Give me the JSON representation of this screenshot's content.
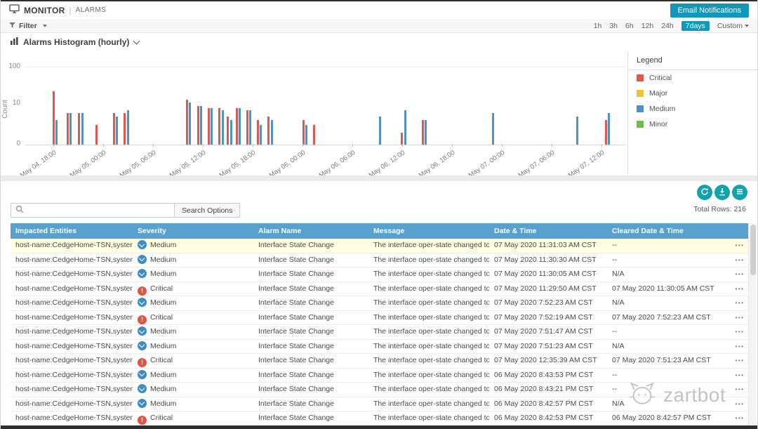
{
  "colors": {
    "accent": "#1297b8",
    "icon_teal": "#0fa3ad",
    "table_header_blue": "#58a1cf",
    "row_highlight": "#ffffe1",
    "severity": {
      "Critical": "#e8503f",
      "Medium": "#3d8cc4"
    }
  },
  "header": {
    "title_primary": "MONITOR",
    "title_separator": "|",
    "title_secondary": "ALARMS",
    "email_notifications_label": "Email Notifications"
  },
  "filter_bar": {
    "filter_label": "Filter",
    "time_ranges": [
      "1h",
      "3h",
      "6h",
      "12h",
      "24h"
    ],
    "selected_range": "7days",
    "custom_label": "Custom"
  },
  "histogram": {
    "title": "Alarms Histogram (hourly)",
    "legend_title": "Legend",
    "legend_items": [
      {
        "label": "Critical",
        "color": "#e2574c"
      },
      {
        "label": "Major",
        "color": "#f0c23a"
      },
      {
        "label": "Medium",
        "color": "#4f93c6"
      },
      {
        "label": "Minor",
        "color": "#6cc04a"
      }
    ],
    "ylabel": "Count",
    "yticks": [
      0,
      10,
      100
    ],
    "xticks": [
      "May 04, 18:00",
      "May 05, 00:00",
      "May 05, 06:00",
      "May 05, 12:00",
      "May 05, 18:00",
      "May 06, 00:00",
      "May 06, 06:00",
      "May 06, 12:00",
      "May 06, 18:00",
      "May 07, 00:00",
      "May 07, 06:00",
      "May 07, 12:00"
    ]
  },
  "chart_data": {
    "type": "bar",
    "title": "Alarms Histogram (hourly)",
    "ylabel": "Count",
    "yscale": "log",
    "ylim": [
      0,
      100
    ],
    "yticks": [
      0,
      10,
      100
    ],
    "x_axis_labels": [
      "May 04, 18:00",
      "May 05, 00:00",
      "May 05, 06:00",
      "May 05, 12:00",
      "May 05, 18:00",
      "May 06, 00:00",
      "May 06, 06:00",
      "May 06, 12:00",
      "May 06, 18:00",
      "May 07, 00:00",
      "May 07, 06:00",
      "May 07, 12:00"
    ],
    "bars": [
      {
        "x_fraction": 0.045,
        "sev": "critical",
        "count": 22
      },
      {
        "x_fraction": 0.05,
        "sev": "medium",
        "count": 4
      },
      {
        "x_fraction": 0.069,
        "sev": "critical",
        "count": 6
      },
      {
        "x_fraction": 0.074,
        "sev": "medium",
        "count": 6
      },
      {
        "x_fraction": 0.088,
        "sev": "critical",
        "count": 6
      },
      {
        "x_fraction": 0.093,
        "sev": "medium",
        "count": 6
      },
      {
        "x_fraction": 0.117,
        "sev": "critical",
        "count": 3
      },
      {
        "x_fraction": 0.146,
        "sev": "critical",
        "count": 6
      },
      {
        "x_fraction": 0.151,
        "sev": "medium",
        "count": 5
      },
      {
        "x_fraction": 0.164,
        "sev": "critical",
        "count": 6
      },
      {
        "x_fraction": 0.169,
        "sev": "medium",
        "count": 7
      },
      {
        "x_fraction": 0.268,
        "sev": "critical",
        "count": 13
      },
      {
        "x_fraction": 0.273,
        "sev": "medium",
        "count": 11
      },
      {
        "x_fraction": 0.286,
        "sev": "critical",
        "count": 9
      },
      {
        "x_fraction": 0.291,
        "sev": "medium",
        "count": 9
      },
      {
        "x_fraction": 0.304,
        "sev": "critical",
        "count": 8
      },
      {
        "x_fraction": 0.309,
        "sev": "medium",
        "count": 8
      },
      {
        "x_fraction": 0.322,
        "sev": "critical",
        "count": 8
      },
      {
        "x_fraction": 0.327,
        "sev": "medium",
        "count": 7
      },
      {
        "x_fraction": 0.336,
        "sev": "critical",
        "count": 5
      },
      {
        "x_fraction": 0.341,
        "sev": "medium",
        "count": 4
      },
      {
        "x_fraction": 0.351,
        "sev": "critical",
        "count": 8
      },
      {
        "x_fraction": 0.356,
        "sev": "medium",
        "count": 8
      },
      {
        "x_fraction": 0.368,
        "sev": "critical",
        "count": 7
      },
      {
        "x_fraction": 0.373,
        "sev": "medium",
        "count": 7
      },
      {
        "x_fraction": 0.386,
        "sev": "critical",
        "count": 4
      },
      {
        "x_fraction": 0.391,
        "sev": "medium",
        "count": 3
      },
      {
        "x_fraction": 0.404,
        "sev": "critical",
        "count": 5
      },
      {
        "x_fraction": 0.409,
        "sev": "medium",
        "count": 4
      },
      {
        "x_fraction": 0.462,
        "sev": "critical",
        "count": 4
      },
      {
        "x_fraction": 0.467,
        "sev": "medium",
        "count": 3
      },
      {
        "x_fraction": 0.48,
        "sev": "critical",
        "count": 3
      },
      {
        "x_fraction": 0.59,
        "sev": "medium",
        "count": 5
      },
      {
        "x_fraction": 0.626,
        "sev": "critical",
        "count": 2
      },
      {
        "x_fraction": 0.631,
        "sev": "medium",
        "count": 7
      },
      {
        "x_fraction": 0.661,
        "sev": "critical",
        "count": 4
      },
      {
        "x_fraction": 0.666,
        "sev": "medium",
        "count": 4
      },
      {
        "x_fraction": 0.778,
        "sev": "medium",
        "count": 6
      },
      {
        "x_fraction": 0.918,
        "sev": "medium",
        "count": 5
      },
      {
        "x_fraction": 0.966,
        "sev": "critical",
        "count": 4
      },
      {
        "x_fraction": 0.971,
        "sev": "medium",
        "count": 6
      }
    ]
  },
  "table_toolbar": {
    "search_placeholder": "",
    "search_options_label": "Search Options",
    "total_rows_label": "Total Rows:",
    "total_rows_value": "216",
    "row_actions_glyph": "•••"
  },
  "table": {
    "columns": [
      "Impacted Entities",
      "Severity",
      "Alarm Name",
      "Message",
      "Date & Time",
      "Cleared Date & Time"
    ],
    "rows": [
      {
        "impacted": "host-name:CedgeHome-TSN,system-ip:...",
        "severity": "Medium",
        "alarm": "Interface State Change",
        "message": "The interface oper-state changed to up",
        "date": "07 May 2020 11:31:03 AM CST",
        "cleared": "--",
        "highlight": true
      },
      {
        "impacted": "host-name:CedgeHome-TSN,system-ip:...",
        "severity": "Medium",
        "alarm": "Interface State Change",
        "message": "The interface oper-state changed to up",
        "date": "07 May 2020 11:30:30 AM CST",
        "cleared": "--",
        "highlight": false
      },
      {
        "impacted": "host-name:CedgeHome-TSN,system-ip:...",
        "severity": "Medium",
        "alarm": "Interface State Change",
        "message": "The interface oper-state changed to up",
        "date": "07 May 2020 11:30:05 AM CST",
        "cleared": "N/A",
        "highlight": false
      },
      {
        "impacted": "host-name:CedgeHome-TSN,system-ip:...",
        "severity": "Critical",
        "alarm": "Interface State Change",
        "message": "The interface oper-state changed to do...",
        "date": "07 May 2020 11:29:50 AM CST",
        "cleared": "07 May 2020 11:30:05 AM CST",
        "highlight": false
      },
      {
        "impacted": "host-name:CedgeHome-TSN,system-ip:...",
        "severity": "Medium",
        "alarm": "Interface State Change",
        "message": "The interface oper-state changed to up",
        "date": "07 May 2020 7:52:23 AM CST",
        "cleared": "N/A",
        "highlight": false
      },
      {
        "impacted": "host-name:CedgeHome-TSN,system-ip:...",
        "severity": "Critical",
        "alarm": "Interface State Change",
        "message": "The interface oper-state changed to do...",
        "date": "07 May 2020 7:52:19 AM CST",
        "cleared": "07 May 2020 7:52:23 AM CST",
        "highlight": false
      },
      {
        "impacted": "host-name:CedgeHome-TSN,system-ip:...",
        "severity": "Medium",
        "alarm": "Interface State Change",
        "message": "The interface oper-state changed to up",
        "date": "07 May 2020 7:51:47 AM CST",
        "cleared": "--",
        "highlight": false
      },
      {
        "impacted": "host-name:CedgeHome-TSN,system-ip:...",
        "severity": "Medium",
        "alarm": "Interface State Change",
        "message": "The interface oper-state changed to up",
        "date": "07 May 2020 7:51:23 AM CST",
        "cleared": "N/A",
        "highlight": false
      },
      {
        "impacted": "host-name:CedgeHome-TSN,system-ip:...",
        "severity": "Critical",
        "alarm": "Interface State Change",
        "message": "The interface oper-state changed to do...",
        "date": "07 May 2020 12:35:39 AM CST",
        "cleared": "07 May 2020 7:51:23 AM CST",
        "highlight": false
      },
      {
        "impacted": "host-name:CedgeHome-TSN,system-ip:...",
        "severity": "Medium",
        "alarm": "Interface State Change",
        "message": "The interface oper-state changed to up",
        "date": "06 May 2020 8:43:53 PM CST",
        "cleared": "--",
        "highlight": false
      },
      {
        "impacted": "host-name:CedgeHome-TSN,system-ip:...",
        "severity": "Medium",
        "alarm": "Interface State Change",
        "message": "The interface oper-state changed to up",
        "date": "06 May 2020 8:43:21 PM CST",
        "cleared": "--",
        "highlight": false
      },
      {
        "impacted": "host-name:CedgeHome-TSN,system-ip:...",
        "severity": "Medium",
        "alarm": "Interface State Change",
        "message": "The interface oper-state changed to up",
        "date": "06 May 2020 8:42:57 PM CST",
        "cleared": "N/A",
        "highlight": false
      },
      {
        "impacted": "host-name:CedgeHome-TSN,system-ip:...",
        "severity": "Critical",
        "alarm": "Interface State Change",
        "message": "The interface oper-state changed to do...",
        "date": "06 May 2020 8:42:53 PM CST",
        "cleared": "06 May 2020 8:42:57 PM CST",
        "highlight": false
      }
    ]
  },
  "watermark": {
    "text": "zartbot"
  }
}
